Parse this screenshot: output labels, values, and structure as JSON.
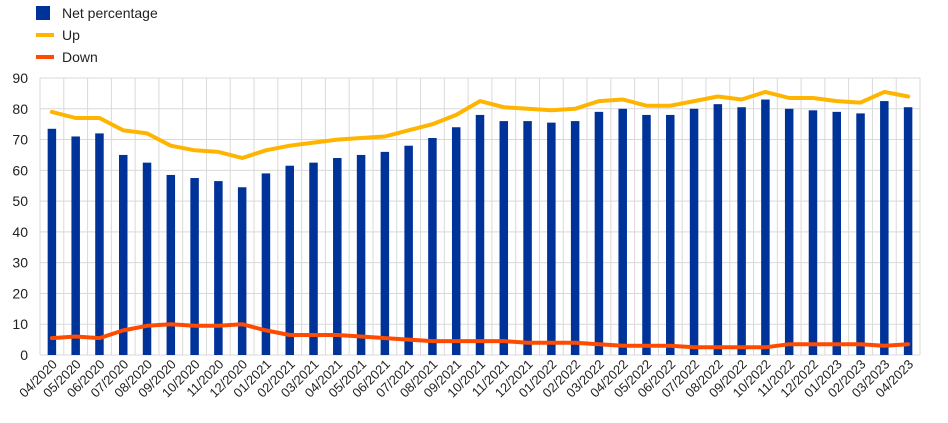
{
  "chart_data": {
    "type": "bar",
    "categories": [
      "04/2020",
      "05/2020",
      "06/2020",
      "07/2020",
      "08/2020",
      "09/2020",
      "10/2020",
      "11/2020",
      "12/2020",
      "01/2021",
      "02/2021",
      "03/2021",
      "04/2021",
      "05/2021",
      "06/2021",
      "07/2021",
      "08/2021",
      "09/2021",
      "10/2021",
      "11/2021",
      "12/2021",
      "01/2022",
      "02/2022",
      "03/2022",
      "04/2022",
      "05/2022",
      "06/2022",
      "07/2022",
      "08/2022",
      "09/2022",
      "10/2022",
      "11/2022",
      "12/2022",
      "01/2023",
      "02/2023",
      "03/2023",
      "04/2023"
    ],
    "series": [
      {
        "name": "Net percentage",
        "kind": "bar",
        "color": "#003399",
        "values": [
          73.5,
          71,
          72,
          65,
          62.5,
          58.5,
          57.5,
          56.5,
          54.5,
          59,
          61.5,
          62.5,
          64,
          65,
          66,
          68,
          70.5,
          74,
          78,
          76,
          76,
          75.5,
          76,
          79,
          80,
          78,
          78,
          80,
          81.5,
          80.5,
          83,
          80,
          79.5,
          79,
          78.5,
          82.5,
          80.5
        ]
      },
      {
        "name": "Up",
        "kind": "line",
        "color": "#FFB400",
        "values": [
          79,
          77,
          77,
          73,
          72,
          68,
          66.5,
          66,
          64,
          66.5,
          68,
          69,
          70,
          70.5,
          71,
          73,
          75,
          78,
          82.5,
          80.5,
          80,
          79.5,
          80,
          82.5,
          83,
          81,
          81,
          82.5,
          84,
          83,
          85.5,
          83.5,
          83.5,
          82.5,
          82,
          85.5,
          84
        ]
      },
      {
        "name": "Down",
        "kind": "line",
        "color": "#FF4B00",
        "values": [
          5.5,
          6,
          5.5,
          8,
          9.5,
          10,
          9.5,
          9.5,
          10,
          8,
          6.5,
          6.5,
          6.5,
          6,
          5.5,
          5,
          4.5,
          4.5,
          4.5,
          4.5,
          4,
          4,
          4,
          3.5,
          3,
          3,
          3,
          2.5,
          2.5,
          2.5,
          2.5,
          3.5,
          3.5,
          3.5,
          3.5,
          3,
          3.5
        ]
      }
    ],
    "ylim": [
      0,
      90
    ],
    "yticks": [
      0,
      10,
      20,
      30,
      40,
      50,
      60,
      70,
      80,
      90
    ],
    "xlabel": "",
    "ylabel": "",
    "grid": "horizontal",
    "legend_position": "top-left"
  }
}
